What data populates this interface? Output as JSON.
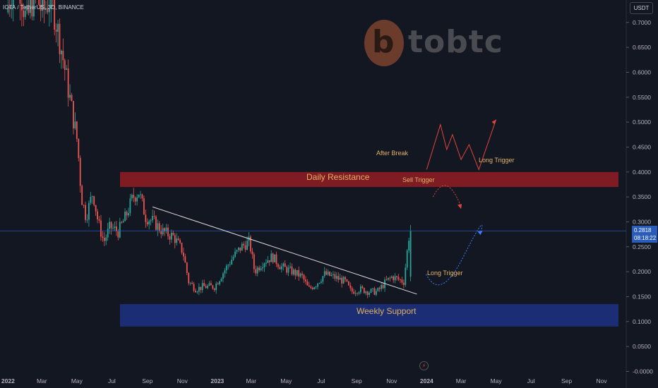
{
  "header": {
    "title": "IOTA / TetherUS, 3D, BINANCE",
    "currency": "USDT"
  },
  "watermark": {
    "text": "tobtc",
    "mark": "b"
  },
  "colors": {
    "up": "#26a69a",
    "down": "#ef5350",
    "resistance": "#8b1c24",
    "support": "#1b2f7a",
    "annotation": "#e3b46a",
    "price_line": "#2a5dbb"
  },
  "price_tag": {
    "price": "0.2818",
    "countdown": "08:18:22"
  },
  "annotations": {
    "resistance": "Daily Resistance",
    "support": "Weekly Support",
    "after_break": "After Break",
    "long_trigger_upper": "Long Trigger",
    "sell_trigger": "Sell Trigger",
    "long_trigger_lower": "Long Trigger"
  },
  "chart_data": {
    "type": "candlestick",
    "title": "IOTA / TetherUS, 3D, BINANCE",
    "x_ticks": [
      "2022",
      "Mar",
      "May",
      "Jul",
      "Sep",
      "Nov",
      "2023",
      "Mar",
      "May",
      "Jul",
      "Sep",
      "Nov",
      "2024",
      "Mar",
      "May",
      "Jul",
      "Sep",
      "Nov"
    ],
    "y_ticks": [
      "0.7000",
      "0.6500",
      "0.6000",
      "0.5500",
      "0.5000",
      "0.4500",
      "0.4000",
      "0.3500",
      "0.3000",
      "0.2500",
      "0.2000",
      "0.1500",
      "0.1000",
      "0.0500",
      "-0.0000"
    ],
    "ylim": [
      -0.005,
      0.745
    ],
    "current_price": 0.2818,
    "zones": [
      {
        "name": "Daily Resistance",
        "from": 0.37,
        "to": 0.4
      },
      {
        "name": "Weekly Support",
        "from": 0.09,
        "to": 0.135
      }
    ],
    "trendline": {
      "start": [
        "2022-09-10",
        0.33
      ],
      "end": [
        "2023-12-15",
        0.155
      ]
    },
    "price_path": [
      [
        "2022-01-01",
        0.72
      ],
      [
        "2022-01-20",
        0.8
      ],
      [
        "2022-02-05",
        0.7
      ],
      [
        "2022-02-20",
        0.76
      ],
      [
        "2022-03-05",
        0.72
      ],
      [
        "2022-03-20",
        0.75
      ],
      [
        "2022-04-05",
        0.66
      ],
      [
        "2022-04-20",
        0.56
      ],
      [
        "2022-05-05",
        0.46
      ],
      [
        "2022-05-12",
        0.35
      ],
      [
        "2022-05-20",
        0.31
      ],
      [
        "2022-06-01",
        0.36
      ],
      [
        "2022-06-10",
        0.3
      ],
      [
        "2022-06-20",
        0.26
      ],
      [
        "2022-07-01",
        0.29
      ],
      [
        "2022-07-15",
        0.28
      ],
      [
        "2022-07-28",
        0.31
      ],
      [
        "2022-08-10",
        0.35
      ],
      [
        "2022-08-20",
        0.36
      ],
      [
        "2022-09-01",
        0.31
      ],
      [
        "2022-09-15",
        0.3
      ],
      [
        "2022-10-01",
        0.28
      ],
      [
        "2022-10-20",
        0.27
      ],
      [
        "2022-11-05",
        0.24
      ],
      [
        "2022-11-15",
        0.18
      ],
      [
        "2022-11-28",
        0.165
      ],
      [
        "2022-12-10",
        0.17
      ],
      [
        "2022-12-30",
        0.17
      ],
      [
        "2023-01-15",
        0.2
      ],
      [
        "2023-02-01",
        0.23
      ],
      [
        "2023-02-15",
        0.25
      ],
      [
        "2023-03-01",
        0.26
      ],
      [
        "2023-03-10",
        0.2
      ],
      [
        "2023-03-25",
        0.22
      ],
      [
        "2023-04-10",
        0.23
      ],
      [
        "2023-04-25",
        0.21
      ],
      [
        "2023-05-15",
        0.2
      ],
      [
        "2023-06-01",
        0.19
      ],
      [
        "2023-06-12",
        0.165
      ],
      [
        "2023-06-25",
        0.175
      ],
      [
        "2023-07-10",
        0.195
      ],
      [
        "2023-07-25",
        0.19
      ],
      [
        "2023-08-15",
        0.18
      ],
      [
        "2023-08-25",
        0.16
      ],
      [
        "2023-09-10",
        0.165
      ],
      [
        "2023-09-25",
        0.16
      ],
      [
        "2023-10-10",
        0.16
      ],
      [
        "2023-10-25",
        0.18
      ],
      [
        "2023-11-05",
        0.19
      ],
      [
        "2023-11-15",
        0.185
      ],
      [
        "2023-11-25",
        0.18
      ],
      [
        "2023-12-05",
        0.28
      ]
    ],
    "forecast_upper": [
      [
        "2024-01-12",
        0.35
      ],
      [
        "2024-02-05",
        0.39
      ],
      [
        "2024-03-01",
        0.33
      ]
    ],
    "forecast_lower": [
      [
        "2023-12-31",
        0.195
      ],
      [
        "2024-01-25",
        0.16
      ],
      [
        "2024-03-05",
        0.23
      ],
      [
        "2024-04-05",
        0.282
      ]
    ],
    "scenario_after_break": [
      [
        "2024-01-01",
        0.405
      ],
      [
        "2024-01-25",
        0.495
      ],
      [
        "2024-02-05",
        0.445
      ],
      [
        "2024-02-15",
        0.475
      ],
      [
        "2024-03-01",
        0.425
      ],
      [
        "2024-03-15",
        0.455
      ],
      [
        "2024-04-01",
        0.405
      ],
      [
        "2024-05-01",
        0.505
      ]
    ]
  }
}
